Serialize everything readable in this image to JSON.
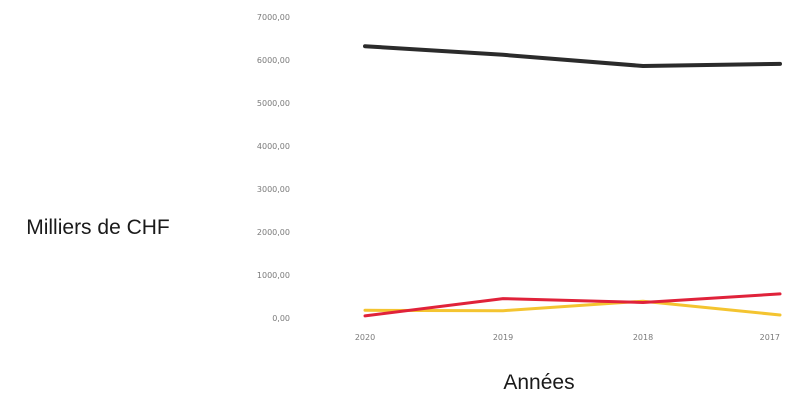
{
  "chart_data": {
    "type": "line",
    "xlabel": "Années",
    "ylabel": "Milliers de CHF",
    "categories": [
      "2020",
      "2019",
      "2018",
      "2017"
    ],
    "y_ticks": [
      "0,00",
      "1000,00",
      "2000,00",
      "3000,00",
      "4000,00",
      "5000,00",
      "6000,00",
      "7000,00"
    ],
    "ylim": [
      0,
      7000
    ],
    "grid": false,
    "legend": "none",
    "series": [
      {
        "color": "#2b2b2b",
        "values": [
          6320,
          6120,
          5860,
          5910
        ]
      },
      {
        "color": "#f4c430",
        "values": [
          180,
          170,
          390,
          70
        ]
      },
      {
        "color": "#e0223a",
        "values": [
          50,
          450,
          360,
          560
        ]
      }
    ]
  }
}
